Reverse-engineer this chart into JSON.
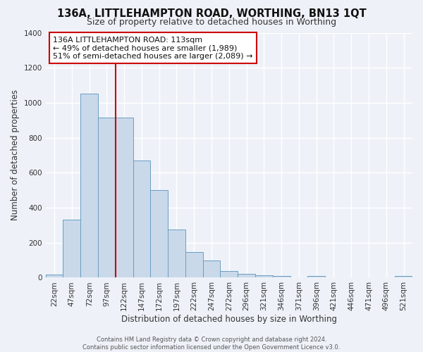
{
  "title": "136A, LITTLEHAMPTON ROAD, WORTHING, BN13 1QT",
  "subtitle": "Size of property relative to detached houses in Worthing",
  "xlabel": "Distribution of detached houses by size in Worthing",
  "ylabel": "Number of detached properties",
  "bar_color": "#c9d9ea",
  "bar_edge_color": "#6b9dc2",
  "background_color": "#eef2f8",
  "grid_color": "#ffffff",
  "bins": [
    "22sqm",
    "47sqm",
    "72sqm",
    "97sqm",
    "122sqm",
    "147sqm",
    "172sqm",
    "197sqm",
    "222sqm",
    "247sqm",
    "272sqm",
    "296sqm",
    "321sqm",
    "346sqm",
    "371sqm",
    "396sqm",
    "421sqm",
    "446sqm",
    "471sqm",
    "496sqm",
    "521sqm"
  ],
  "values": [
    18,
    330,
    1050,
    915,
    915,
    670,
    500,
    275,
    148,
    100,
    40,
    22,
    15,
    10,
    0,
    10,
    0,
    0,
    0,
    0,
    10
  ],
  "ylim": [
    0,
    1400
  ],
  "yticks": [
    0,
    200,
    400,
    600,
    800,
    1000,
    1200,
    1400
  ],
  "vline_color": "#cc0000",
  "vline_bin_index": 4,
  "annotation_text": "136A LITTLEHAMPTON ROAD: 113sqm\n← 49% of detached houses are smaller (1,989)\n51% of semi-detached houses are larger (2,089) →",
  "footnote": "Contains HM Land Registry data © Crown copyright and database right 2024.\nContains public sector information licensed under the Open Government Licence v3.0.",
  "title_fontsize": 10.5,
  "subtitle_fontsize": 9,
  "axis_label_fontsize": 8.5,
  "tick_fontsize": 7.5,
  "annotation_fontsize": 8,
  "footnote_fontsize": 6
}
